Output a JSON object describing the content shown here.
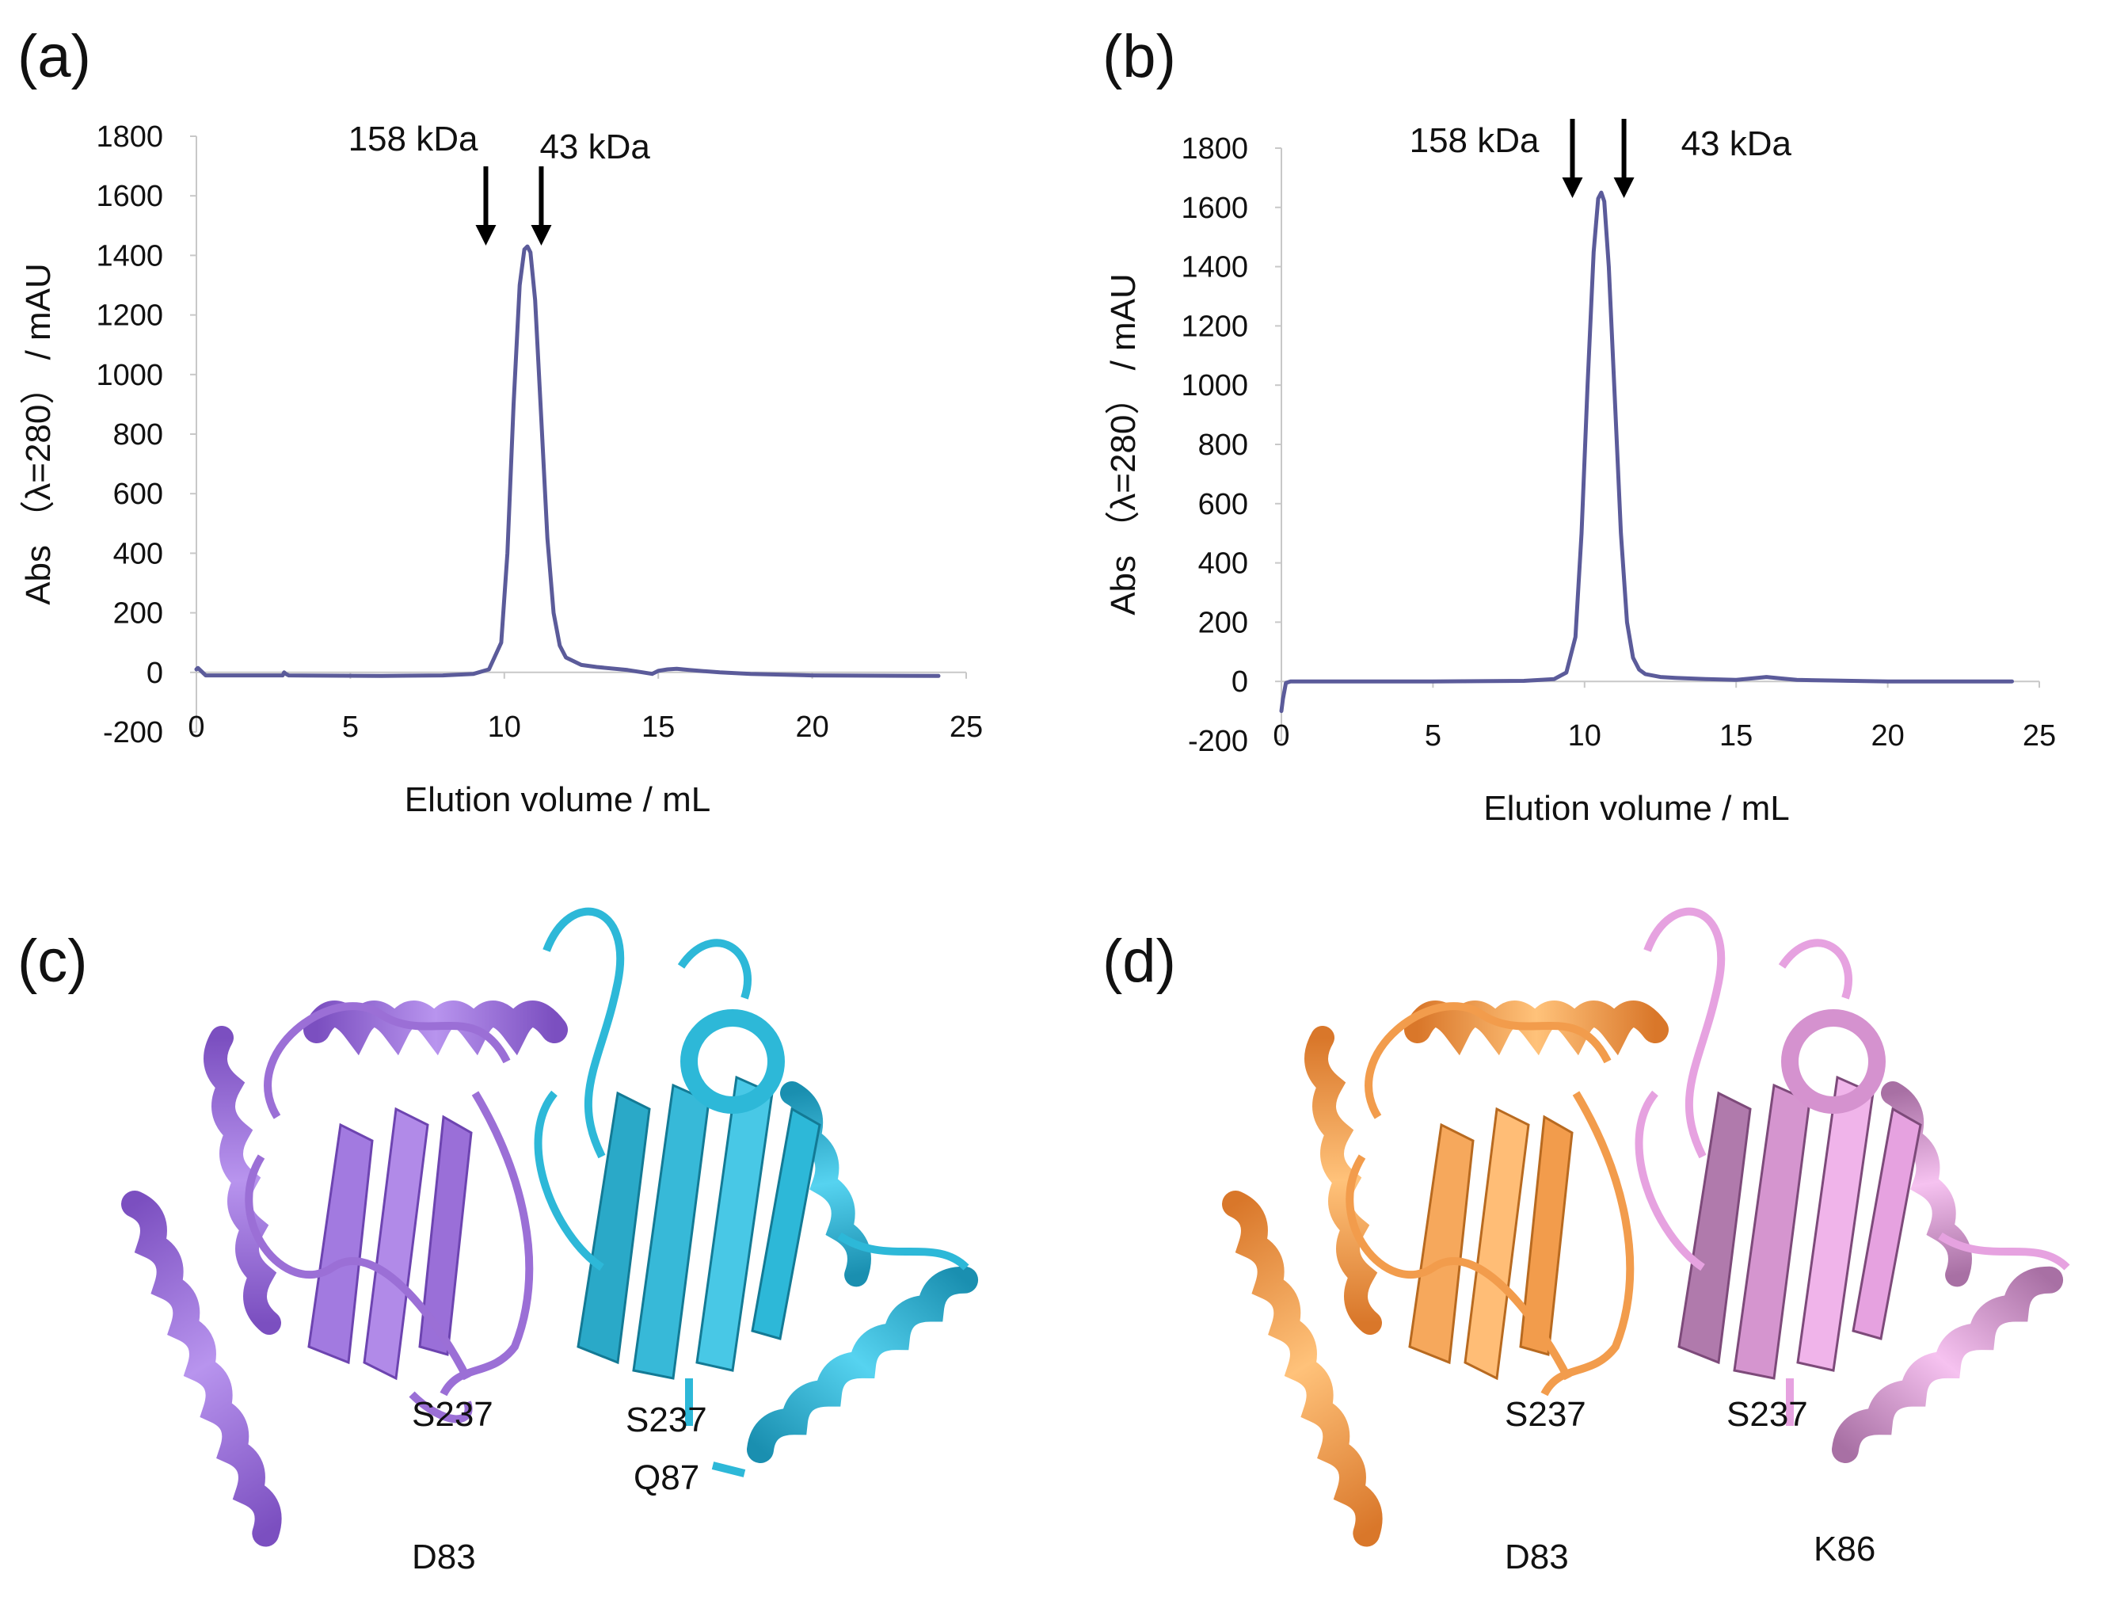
{
  "panels": {
    "a": "(a)",
    "b": "(b)",
    "c": "(c)",
    "d": "(d)"
  },
  "chart_data": [
    {
      "id": "a",
      "type": "line",
      "xlabel": "Elution volume / mL",
      "ylabel": "Abs （λ=280） / mAU",
      "xlim": [
        0,
        25
      ],
      "ylim": [
        -200,
        1800
      ],
      "xticks": [
        0,
        5,
        10,
        15,
        20,
        25
      ],
      "yticks": [
        -200,
        0,
        200,
        400,
        600,
        800,
        1000,
        1200,
        1400,
        1600,
        1800
      ],
      "grid": false,
      "line_color": "#5b5b9a",
      "markers": [
        {
          "label": "158 kDa",
          "x": 9.4
        },
        {
          "label": "43 kDa",
          "x": 11.2
        }
      ],
      "series": [
        {
          "name": "trace",
          "x": [
            0,
            0.05,
            0.3,
            2.8,
            2.85,
            2.9,
            3.0,
            6,
            8,
            9.0,
            9.5,
            9.9,
            10.1,
            10.3,
            10.5,
            10.65,
            10.75,
            10.85,
            11.0,
            11.2,
            11.4,
            11.6,
            11.8,
            12.0,
            12.5,
            13.0,
            14.0,
            14.5,
            14.8,
            15.0,
            15.3,
            15.6,
            16.0,
            17,
            18,
            20,
            24.1
          ],
          "y": [
            10,
            15,
            -10,
            -10,
            0,
            -5,
            -10,
            -12,
            -10,
            -5,
            10,
            100,
            400,
            900,
            1300,
            1420,
            1430,
            1410,
            1250,
            850,
            450,
            200,
            90,
            50,
            25,
            18,
            8,
            0,
            -5,
            5,
            10,
            12,
            8,
            0,
            -5,
            -10,
            -12
          ]
        }
      ]
    },
    {
      "id": "b",
      "type": "line",
      "xlabel": "Elution volume / mL",
      "ylabel": "Abs （λ=280） / mAU",
      "xlim": [
        0,
        25
      ],
      "ylim": [
        -200,
        1800
      ],
      "xticks": [
        0,
        5,
        10,
        15,
        20,
        25
      ],
      "yticks": [
        -200,
        0,
        200,
        400,
        600,
        800,
        1000,
        1200,
        1400,
        1600,
        1800
      ],
      "grid": false,
      "line_color": "#5b5b9a",
      "markers": [
        {
          "label": "158 kDa",
          "x": 9.6
        },
        {
          "label": "43 kDa",
          "x": 11.3
        }
      ],
      "series": [
        {
          "name": "trace",
          "x": [
            0,
            0.05,
            0.15,
            0.3,
            2,
            5,
            8,
            9.0,
            9.4,
            9.7,
            9.9,
            10.1,
            10.3,
            10.45,
            10.55,
            10.65,
            10.8,
            11.0,
            11.2,
            11.4,
            11.6,
            11.8,
            12.0,
            12.5,
            13.0,
            14.0,
            15.0,
            15.5,
            16.0,
            16.5,
            17,
            20,
            24.1
          ],
          "y": [
            -100,
            -60,
            -5,
            0,
            0,
            0,
            2,
            8,
            30,
            150,
            500,
            1000,
            1450,
            1630,
            1650,
            1620,
            1400,
            950,
            500,
            200,
            80,
            40,
            25,
            15,
            12,
            8,
            5,
            10,
            15,
            10,
            5,
            0,
            0
          ]
        }
      ]
    }
  ],
  "structures": {
    "c": {
      "chain1_color": "#9b6fd6",
      "chain2_color": "#2db8d8",
      "labels": [
        "S237",
        "S237",
        "Q87",
        "D83"
      ]
    },
    "d": {
      "chain1_color": "#f29c4c",
      "chain2_color": "#e6a2e0",
      "labels": [
        "S237",
        "S237",
        "D83",
        "K86"
      ]
    }
  }
}
